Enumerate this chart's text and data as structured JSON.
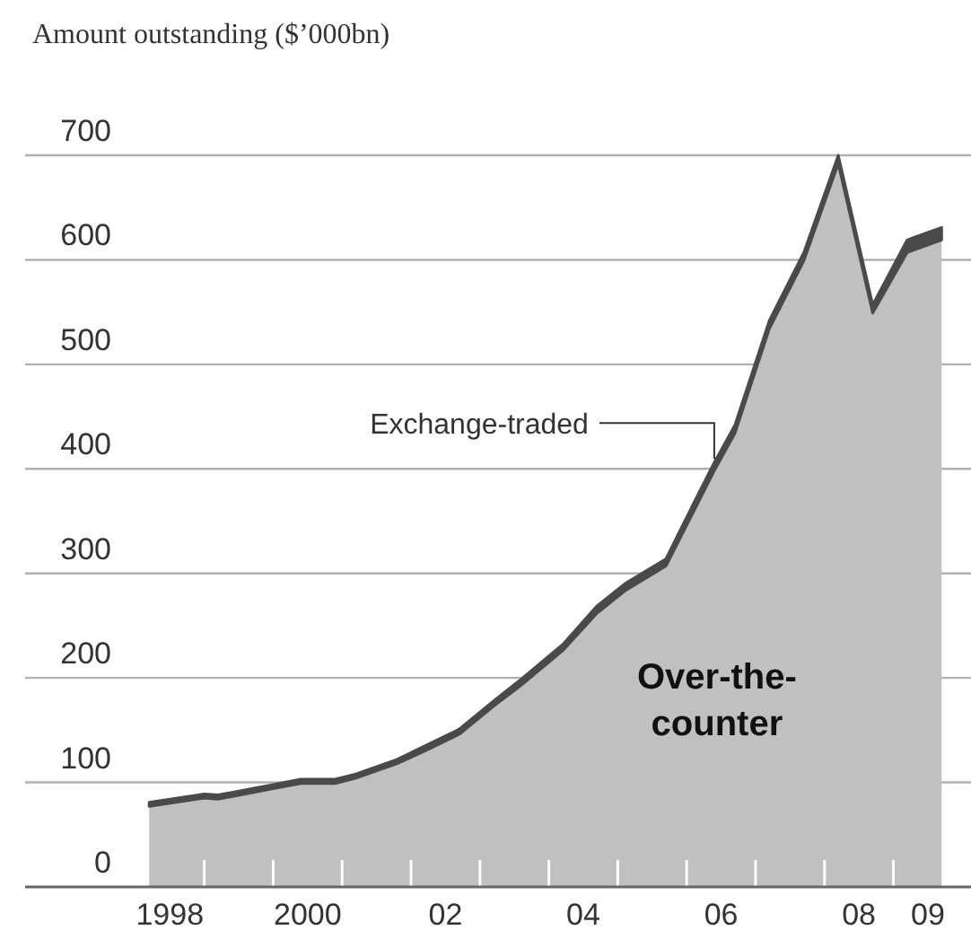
{
  "chart_data": {
    "type": "area",
    "stacked": true,
    "title": "Amount outstanding ($’000bn)",
    "x": [
      1997.7,
      1998.5,
      1998.7,
      1999.5,
      1999.9,
      2000.4,
      2000.7,
      2001.3,
      2001.7,
      2002.2,
      2002.7,
      2003.1,
      2003.7,
      2004.2,
      2004.6,
      2005.2,
      2005.6,
      2005.9,
      2006.2,
      2006.7,
      2007.2,
      2007.7,
      2008.2,
      2008.7,
      2009.2
    ],
    "series": [
      {
        "name": "Over-the-counter",
        "color": "#c0c0c0",
        "values": [
          77,
          85,
          84,
          94,
          99,
          99,
          104,
          118,
          130,
          146,
          173,
          193,
          226,
          262,
          283,
          307,
          359,
          398,
          434,
          534,
          599,
          692,
          549,
          607,
          619
        ]
      },
      {
        "name": "Exchange-traded",
        "color": "#4a4a4a",
        "values": [
          4,
          4,
          4,
          4,
          4,
          4,
          4,
          4,
          5,
          5,
          5,
          6,
          6,
          7,
          7,
          7,
          8,
          8,
          8,
          8,
          8,
          8,
          8,
          12,
          12
        ]
      }
    ],
    "xlim": [
      1995.9,
      2009.6
    ],
    "xticks": [
      1998,
      2000,
      {
        "value": 2002,
        "label": "02"
      },
      {
        "value": 2004,
        "label": "04"
      },
      {
        "value": 2006,
        "label": "06"
      },
      {
        "value": 2008,
        "label": "08"
      },
      {
        "value": 2009,
        "label": "09"
      },
      {
        "value": 1998.5,
        "label": null
      },
      {
        "value": 1999.5,
        "label": null
      },
      {
        "value": 2000.5,
        "label": null
      },
      {
        "value": 2001.5,
        "label": null
      },
      {
        "value": 2002.5,
        "label": null
      },
      {
        "value": 2003.5,
        "label": null
      },
      {
        "value": 2004.5,
        "label": null
      },
      {
        "value": 2005.5,
        "label": null
      },
      {
        "value": 2006.5,
        "label": null
      },
      {
        "value": 2007.5,
        "label": null
      },
      {
        "value": 2008.5,
        "label": null
      }
    ],
    "ylim": [
      0,
      700
    ],
    "yticks": [
      0,
      100,
      200,
      300,
      400,
      500,
      600,
      700
    ],
    "grid": "y"
  }
}
